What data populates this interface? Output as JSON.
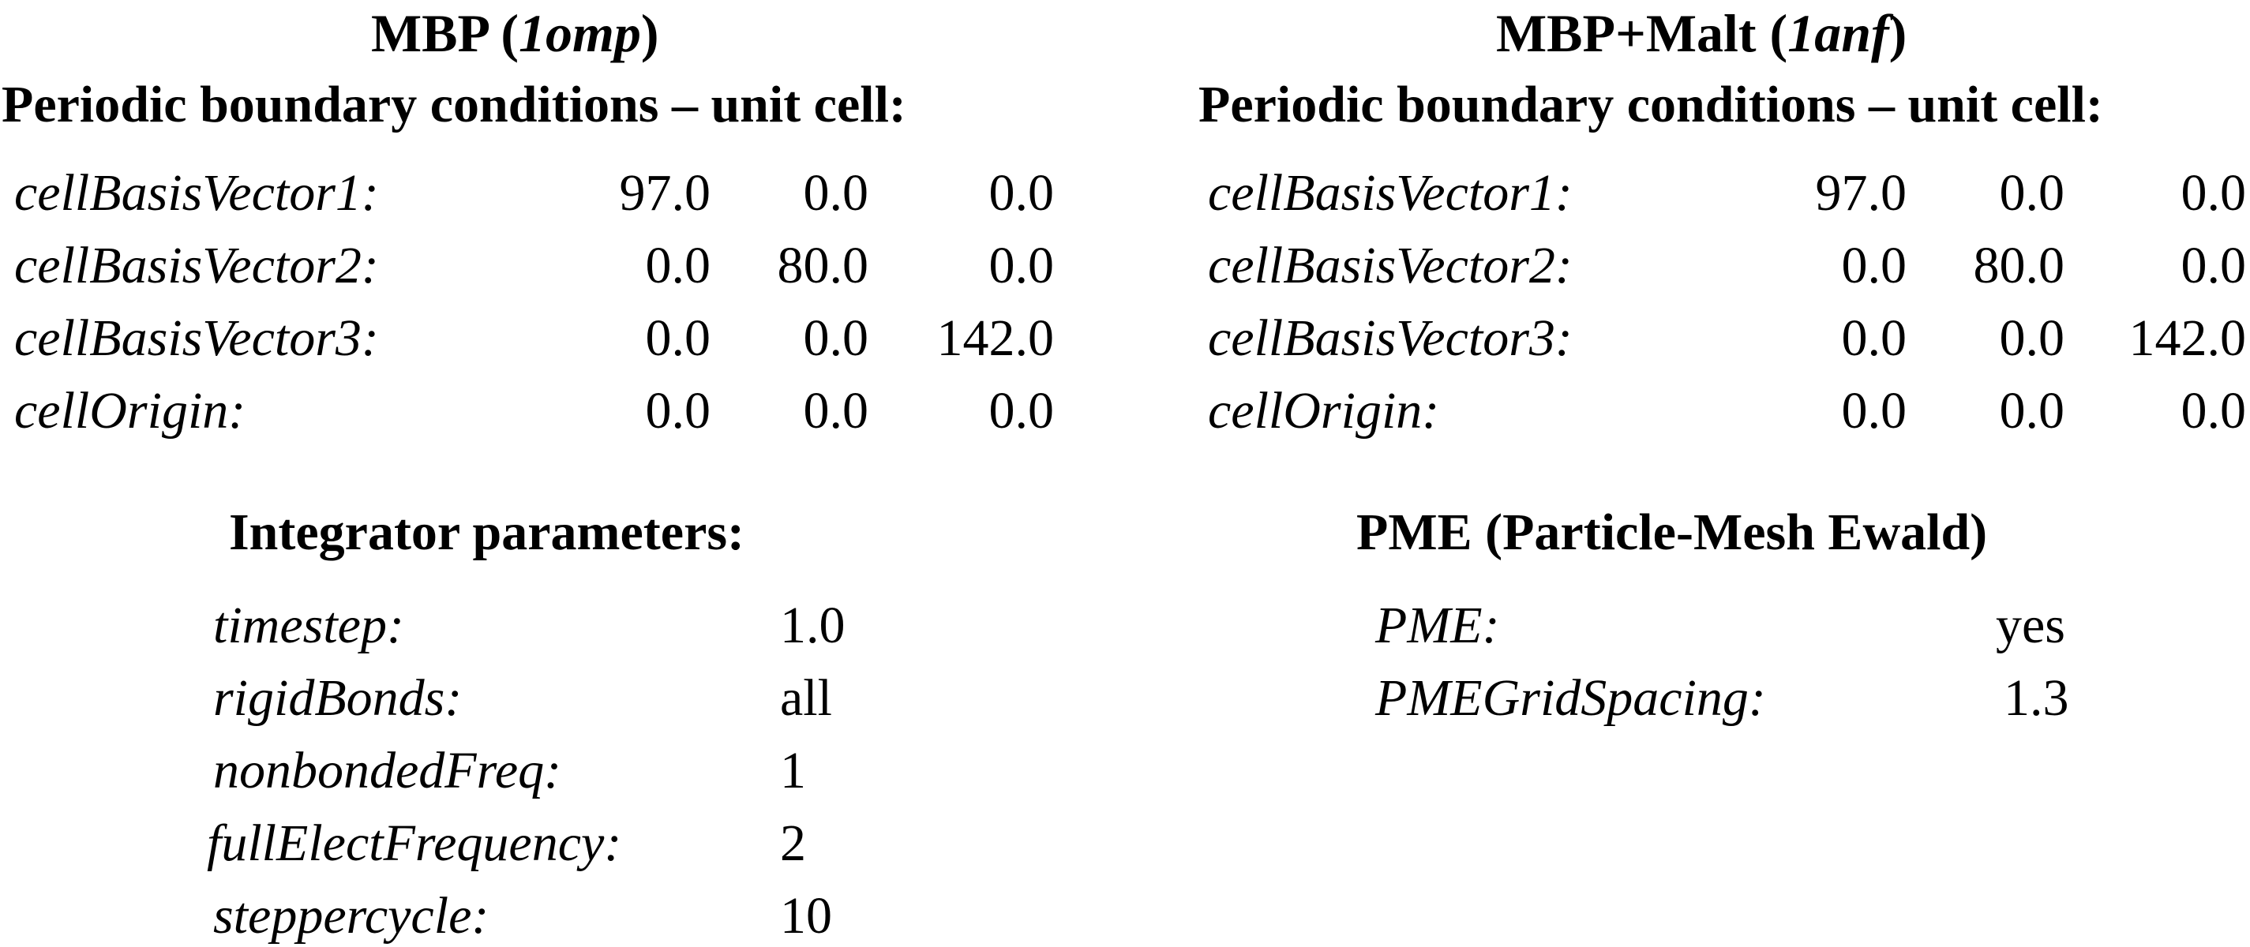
{
  "left": {
    "title_prefix": "MBP (",
    "title_code": "1omp",
    "title_suffix": ")",
    "subtitle": "Periodic boundary conditions – unit cell:",
    "rows": [
      {
        "label": "cellBasisVector1:",
        "v1": "97.0",
        "v2": "0.0",
        "v3": "0.0"
      },
      {
        "label": "cellBasisVector2:",
        "v1": "0.0",
        "v2": "80.0",
        "v3": "0.0"
      },
      {
        "label": "cellBasisVector3:",
        "v1": "0.0",
        "v2": "0.0",
        "v3": "142.0"
      },
      {
        "label": "cellOrigin:",
        "v1": "0.0",
        "v2": "0.0",
        "v3": "0.0"
      }
    ]
  },
  "right": {
    "title_prefix": "MBP+Malt (",
    "title_code": "1anf",
    "title_suffix": ")",
    "subtitle": "Periodic boundary conditions – unit cell:",
    "rows": [
      {
        "label": "cellBasisVector1:",
        "v1": "97.0",
        "v2": "0.0",
        "v3": "0.0"
      },
      {
        "label": "cellBasisVector2:",
        "v1": "0.0",
        "v2": "80.0",
        "v3": "0.0"
      },
      {
        "label": "cellBasisVector3:",
        "v1": "0.0",
        "v2": "0.0",
        "v3": "142.0"
      },
      {
        "label": "cellOrigin:",
        "v1": "0.0",
        "v2": "0.0",
        "v3": "0.0"
      }
    ]
  },
  "integrator": {
    "heading": "Integrator parameters:",
    "rows": [
      {
        "label": "timestep:",
        "value": "1.0"
      },
      {
        "label": "rigidBonds:",
        "value": "all"
      },
      {
        "label": "nonbondedFreq:",
        "value": "1"
      },
      {
        "label": "fullElectFrequency:",
        "value": "2"
      },
      {
        "label": "steppercycle:",
        "value": "10"
      }
    ]
  },
  "pme": {
    "heading": "PME (Particle-Mesh Ewald)",
    "rows": [
      {
        "label": "PME:",
        "value": "yes"
      },
      {
        "label": "PMEGridSpacing:",
        "value": "1.3"
      }
    ]
  }
}
